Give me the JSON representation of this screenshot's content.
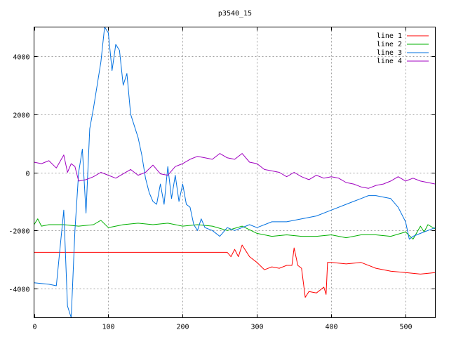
{
  "chart_data": {
    "type": "line",
    "title": "p3540_15",
    "xlabel": "",
    "ylabel": "",
    "xlim": [
      0,
      540
    ],
    "ylim": [
      -5000,
      5000
    ],
    "x_ticks": [
      0,
      100,
      200,
      300,
      400,
      500
    ],
    "y_ticks": [
      -4000,
      -2000,
      0,
      2000,
      4000
    ],
    "grid": true,
    "legend_position": "top-right",
    "series": [
      {
        "name": "line 1",
        "color": "#ff0000",
        "x": [
          0,
          240,
          260,
          265,
          270,
          275,
          280,
          285,
          290,
          300,
          310,
          320,
          330,
          340,
          347,
          350,
          355,
          360,
          365,
          370,
          380,
          390,
          393,
          395,
          400,
          420,
          440,
          460,
          480,
          500,
          520,
          540
        ],
        "y": [
          -2750,
          -2750,
          -2750,
          -2900,
          -2650,
          -2900,
          -2500,
          -2700,
          -2900,
          -3100,
          -3350,
          -3250,
          -3300,
          -3200,
          -3200,
          -2600,
          -3200,
          -3300,
          -4300,
          -4100,
          -4150,
          -3950,
          -4200,
          -3100,
          -3100,
          -3150,
          -3100,
          -3300,
          -3400,
          -3450,
          -3500,
          -3450
        ]
      },
      {
        "name": "line 2",
        "color": "#00b000",
        "x": [
          0,
          5,
          10,
          20,
          40,
          60,
          80,
          90,
          100,
          120,
          140,
          160,
          180,
          200,
          220,
          240,
          260,
          280,
          300,
          320,
          340,
          360,
          380,
          400,
          420,
          440,
          460,
          480,
          500,
          510,
          520,
          525,
          530,
          540
        ],
        "y": [
          -1800,
          -1600,
          -1850,
          -1800,
          -1800,
          -1850,
          -1800,
          -1650,
          -1900,
          -1800,
          -1750,
          -1800,
          -1750,
          -1850,
          -1800,
          -1850,
          -2000,
          -1850,
          -2100,
          -2200,
          -2150,
          -2200,
          -2200,
          -2150,
          -2250,
          -2150,
          -2150,
          -2200,
          -2050,
          -2300,
          -1850,
          -2050,
          -1800,
          -1950
        ]
      },
      {
        "name": "line 3",
        "color": "#0070e0",
        "x": [
          0,
          20,
          30,
          40,
          45,
          50,
          55,
          60,
          65,
          70,
          75,
          80,
          85,
          90,
          95,
          100,
          105,
          110,
          115,
          120,
          125,
          130,
          135,
          140,
          145,
          150,
          155,
          160,
          165,
          170,
          175,
          180,
          185,
          190,
          195,
          200,
          205,
          210,
          215,
          220,
          225,
          230,
          240,
          250,
          260,
          270,
          280,
          290,
          300,
          320,
          340,
          360,
          380,
          400,
          420,
          440,
          450,
          460,
          470,
          480,
          490,
          500,
          505,
          510,
          520,
          530,
          540
        ],
        "y": [
          -3800,
          -3850,
          -3900,
          -1300,
          -4600,
          -5000,
          -2000,
          0,
          800,
          -1400,
          1500,
          2200,
          3000,
          3800,
          5000,
          4800,
          3500,
          4400,
          4200,
          3000,
          3400,
          2000,
          1600,
          1200,
          600,
          -200,
          -700,
          -1000,
          -1100,
          -400,
          -1100,
          200,
          -900,
          -100,
          -1000,
          -400,
          -1100,
          -1200,
          -1800,
          -2000,
          -1600,
          -1900,
          -2000,
          -2200,
          -1900,
          -2000,
          -1900,
          -1800,
          -1900,
          -1700,
          -1700,
          -1600,
          -1500,
          -1300,
          -1100,
          -900,
          -800,
          -800,
          -850,
          -900,
          -1200,
          -1700,
          -2300,
          -2200,
          -2100,
          -2000,
          -1900
        ]
      },
      {
        "name": "line 4",
        "color": "#a000c0",
        "x": [
          0,
          10,
          20,
          30,
          40,
          45,
          50,
          55,
          60,
          70,
          80,
          90,
          100,
          110,
          120,
          130,
          140,
          150,
          160,
          170,
          180,
          190,
          200,
          210,
          220,
          230,
          240,
          250,
          260,
          270,
          280,
          290,
          300,
          310,
          320,
          330,
          340,
          350,
          360,
          370,
          380,
          390,
          400,
          410,
          420,
          430,
          440,
          450,
          460,
          470,
          480,
          490,
          500,
          510,
          520,
          530,
          540
        ],
        "y": [
          350,
          300,
          400,
          150,
          600,
          0,
          300,
          200,
          -300,
          -250,
          -150,
          0,
          -100,
          -200,
          -50,
          100,
          -100,
          0,
          250,
          -50,
          -100,
          200,
          300,
          450,
          550,
          500,
          450,
          650,
          500,
          450,
          650,
          350,
          300,
          100,
          50,
          0,
          -150,
          0,
          -150,
          -250,
          -100,
          -200,
          -150,
          -200,
          -350,
          -400,
          -500,
          -550,
          -450,
          -400,
          -300,
          -150,
          -300,
          -200,
          -300,
          -350,
          -400
        ]
      }
    ]
  }
}
